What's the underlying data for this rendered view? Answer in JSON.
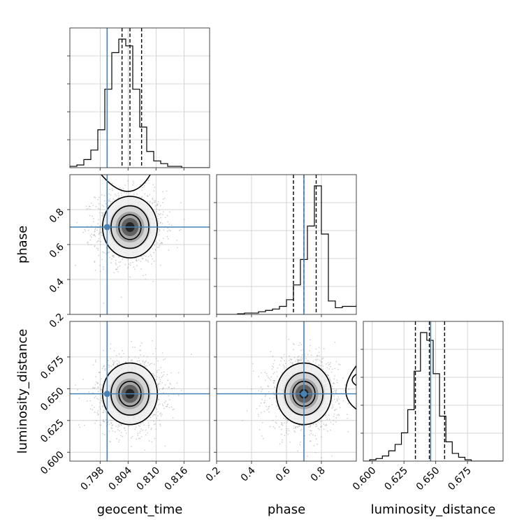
{
  "chart_data": {
    "type": "corner",
    "parameters": [
      {
        "name": "geocent_time",
        "range": [
          0.7915,
          0.8215
        ],
        "ticks": [
          "0.798",
          "0.804",
          "0.810",
          "0.816"
        ],
        "tick_values": [
          0.798,
          0.804,
          0.81,
          0.816
        ]
      },
      {
        "name": "phase",
        "range": [
          0.2,
          1.0
        ],
        "ticks": [
          "0.2",
          "0.4",
          "0.6",
          "0.8"
        ],
        "tick_values": [
          0.2,
          0.4,
          0.6,
          0.8
        ]
      },
      {
        "name": "luminosity_distance",
        "range": [
          0.593,
          0.703
        ],
        "ticks": [
          "0.600",
          "0.625",
          "0.650",
          "0.675"
        ],
        "tick_values": [
          0.6,
          0.625,
          0.65,
          0.675
        ]
      }
    ],
    "truths": [
      0.7995,
      0.7,
      0.646
    ],
    "quantiles": [
      [
        0.8027,
        0.8044,
        0.8069
      ],
      [
        0.64,
        0.7,
        0.77
      ],
      [
        0.634,
        0.645,
        0.657
      ]
    ],
    "histograms": [
      {
        "edges_start": 0.7915,
        "bin_width": 0.0015,
        "values": [
          1,
          2,
          6,
          13,
          28,
          58,
          85,
          95,
          90,
          58,
          30,
          12,
          5,
          3,
          1,
          1,
          0,
          0,
          0,
          0
        ]
      },
      {
        "edges_start": 0.2,
        "bin_width": 0.04,
        "values": [
          0,
          0,
          0,
          0.5,
          1,
          1,
          2,
          3,
          4,
          6,
          11,
          22,
          41,
          66,
          96,
          60,
          10,
          5,
          6,
          6,
          7,
          14
        ]
      },
      {
        "edges_start": 0.593,
        "bin_width": 0.005,
        "values": [
          0,
          1,
          2,
          4,
          8,
          13,
          22,
          40,
          70,
          100,
          94,
          68,
          35,
          15,
          6,
          3,
          1,
          0,
          0,
          0,
          0,
          0
        ]
      }
    ],
    "grid": true,
    "truth_color": "#4682b4"
  }
}
